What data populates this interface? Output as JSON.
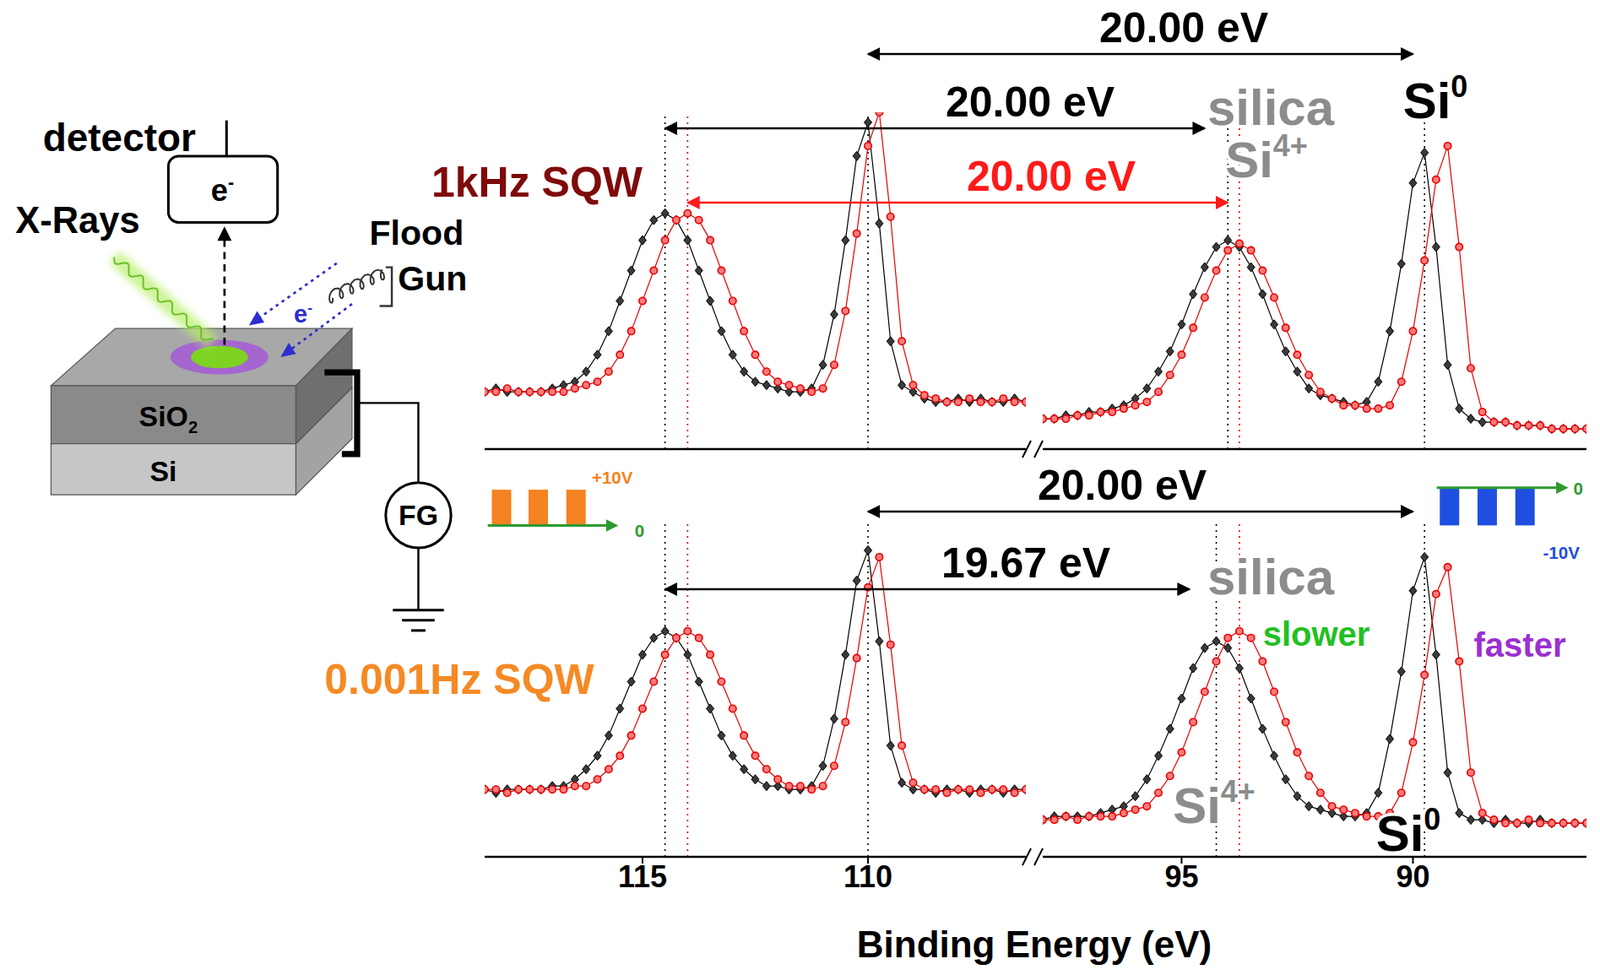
{
  "diagram": {
    "detector": "detector",
    "detector_signal": {
      "text": "e",
      "sup": "-"
    },
    "source": "X-Rays",
    "flood_gun": [
      "Flood",
      "Gun"
    ],
    "flood_electrons": {
      "text": "e",
      "sup": "-",
      "color": "#2d2dd0"
    },
    "layers": [
      {
        "text": "SiO",
        "sub": "2"
      },
      {
        "text": "Si"
      }
    ],
    "generator": "FG"
  },
  "chart_data": [
    {
      "type": "line",
      "title": "1kHz SQW",
      "color": "#7f0a0a",
      "ylim": [
        0,
        100
      ],
      "tick_labels": false,
      "grid": false,
      "segments": [
        {
          "xlim": [
            118.5,
            106.5
          ],
          "xticks": [
            115,
            110
          ],
          "x": [
            118.5,
            118.25,
            118,
            117.75,
            117.5,
            117.25,
            117,
            116.75,
            116.5,
            116.25,
            116,
            115.75,
            115.5,
            115.25,
            115,
            114.75,
            114.5,
            114.25,
            114,
            113.75,
            113.5,
            113.25,
            113,
            112.75,
            112.5,
            112.25,
            112,
            111.75,
            111.5,
            111.25,
            111,
            110.75,
            110.5,
            110.25,
            110,
            109.75,
            109.5,
            109.25,
            109,
            108.75,
            108.5,
            108.25,
            108,
            107.75,
            107.5,
            107.25,
            107,
            106.75,
            106.5
          ],
          "series": [
            {
              "color": "#000000",
              "marker": "diamond",
              "values": [
                17,
                18,
                17,
                17,
                17,
                17,
                18,
                19,
                20,
                23,
                28,
                35,
                44,
                53,
                62,
                68,
                70,
                68,
                62,
                53,
                44,
                35,
                28,
                23,
                20,
                19,
                18,
                17,
                17,
                18,
                25,
                40,
                62,
                87,
                97,
                67,
                32,
                19,
                17,
                15,
                14,
                14,
                15,
                14,
                15,
                14,
                14,
                15,
                14
              ]
            },
            {
              "color": "#e60000",
              "marker": "circle",
              "values": [
                17,
                17,
                18,
                17,
                17,
                17,
                17,
                17,
                18,
                19,
                20,
                23,
                28,
                35,
                44,
                53,
                62,
                68,
                70,
                68,
                62,
                53,
                44,
                35,
                28,
                23,
                20,
                19,
                18,
                17,
                18,
                25,
                41,
                64,
                90,
                100,
                69,
                32,
                19,
                16,
                15,
                14,
                14,
                15,
                14,
                14,
                15,
                14,
                14
              ]
            }
          ]
        },
        {
          "xlim": [
            98,
            86.25
          ],
          "xticks": [
            95,
            90
          ],
          "x": [
            98,
            97.75,
            97.5,
            97.25,
            97,
            96.75,
            96.5,
            96.25,
            96,
            95.75,
            95.5,
            95.25,
            95,
            94.75,
            94.5,
            94.25,
            94,
            93.75,
            93.5,
            93.25,
            93,
            92.75,
            92.5,
            92.25,
            92,
            91.75,
            91.5,
            91.25,
            91,
            90.75,
            90.5,
            90.25,
            90,
            89.75,
            89.5,
            89.25,
            89,
            88.75,
            88.5,
            88.25,
            88,
            87.75,
            87.5,
            87.25,
            87,
            86.75,
            86.5,
            86.25
          ],
          "series": [
            {
              "color": "#000000",
              "marker": "diamond",
              "values": [
                9,
                9,
                10,
                10,
                11,
                11,
                12,
                13,
                15,
                18,
                23,
                29,
                37,
                46,
                54,
                60,
                62,
                60,
                54,
                46,
                37,
                29,
                23,
                18,
                16,
                15,
                14,
                13,
                14,
                20,
                35,
                55,
                79,
                88,
                60,
                25,
                12,
                9,
                8,
                8,
                8,
                7,
                7,
                7,
                6,
                6,
                6,
                6
              ]
            },
            {
              "color": "#e60000",
              "marker": "circle",
              "values": [
                9,
                9,
                9,
                10,
                10,
                11,
                11,
                12,
                13,
                14,
                17,
                22,
                28,
                36,
                45,
                53,
                59,
                61,
                59,
                53,
                45,
                36,
                28,
                22,
                17,
                15,
                13,
                13,
                12,
                12,
                13,
                20,
                35,
                56,
                80,
                90,
                60,
                24,
                11,
                8,
                8,
                7,
                7,
                7,
                6,
                6,
                6,
                6
              ]
            }
          ]
        }
      ],
      "reference_lines": [
        {
          "x": 114.5,
          "color": "#000000"
        },
        {
          "x": 114.0,
          "color": "#e60000"
        },
        {
          "x": 110.0,
          "color": "#000000"
        },
        {
          "x": 94.0,
          "color": "#000000"
        },
        {
          "x": 93.75,
          "color": "#e60000"
        },
        {
          "x": 89.75,
          "color": "#000000"
        }
      ],
      "arrows": [
        {
          "text": "20.00 eV",
          "x1": 110.0,
          "x2": 90.0,
          "color": "#000000"
        },
        {
          "text": "20.00 eV",
          "x1": 114.5,
          "x2": 94.5,
          "color": "#000000"
        },
        {
          "text": "20.00 eV",
          "x1": 114.0,
          "x2": 94.0,
          "color": "#ff1a1a"
        }
      ],
      "labels": {
        "silica": {
          "text": "silica",
          "color": "#8c8c8c"
        },
        "oxide": {
          "text": "Si",
          "sup": "4+",
          "color": "#8c8c8c"
        },
        "substrate": {
          "text": "Si",
          "sup": "0",
          "color": "#000000"
        }
      }
    },
    {
      "type": "line",
      "title": "0.001Hz SQW",
      "color": "#f58a24",
      "xlabel": "Binding Energy (eV)",
      "ylim": [
        0,
        100
      ],
      "tick_labels": "x",
      "grid": false,
      "segments": [
        {
          "xlim": [
            118.5,
            106.5
          ],
          "xticks": [
            115,
            110
          ],
          "x": [
            118.5,
            118.25,
            118,
            117.75,
            117.5,
            117.25,
            117,
            116.75,
            116.5,
            116.25,
            116,
            115.75,
            115.5,
            115.25,
            115,
            114.75,
            114.5,
            114.25,
            114,
            113.75,
            113.5,
            113.25,
            113,
            112.75,
            112.5,
            112.25,
            112,
            111.75,
            111.5,
            111.25,
            111,
            110.75,
            110.5,
            110.25,
            110,
            109.75,
            109.5,
            109.25,
            109,
            108.75,
            108.5,
            108.25,
            108,
            107.75,
            107.5,
            107.25,
            107,
            106.75,
            106.5
          ],
          "series": [
            {
              "color": "#000000",
              "marker": "diamond",
              "values": [
                20,
                19,
                20,
                20,
                20,
                20,
                21,
                21,
                23,
                26,
                30,
                36,
                44,
                52,
                60,
                65,
                67,
                65,
                60,
                52,
                44,
                36,
                30,
                26,
                23,
                21,
                21,
                20,
                20,
                21,
                27,
                41,
                60,
                82,
                91,
                64,
                33,
                22,
                20,
                20,
                19,
                20,
                20,
                19,
                20,
                20,
                19,
                20,
                20
              ]
            },
            {
              "color": "#e60000",
              "marker": "circle",
              "values": [
                20,
                20,
                19,
                20,
                20,
                20,
                20,
                20,
                21,
                21,
                23,
                26,
                30,
                36,
                44,
                52,
                60,
                65,
                67,
                65,
                60,
                52,
                44,
                36,
                30,
                26,
                23,
                21,
                21,
                20,
                21,
                27,
                40,
                59,
                80,
                89,
                63,
                33,
                22,
                20,
                20,
                19,
                20,
                20,
                19,
                20,
                20,
                19,
                20
              ]
            }
          ]
        },
        {
          "xlim": [
            98,
            86.25
          ],
          "xticks": [
            95,
            90
          ],
          "x": [
            98,
            97.75,
            97.5,
            97.25,
            97,
            96.75,
            96.5,
            96.25,
            96,
            95.75,
            95.5,
            95.25,
            95,
            94.75,
            94.5,
            94.25,
            94,
            93.75,
            93.5,
            93.25,
            93,
            92.75,
            92.5,
            92.25,
            92,
            91.75,
            91.5,
            91.25,
            91,
            90.75,
            90.5,
            90.25,
            90,
            89.75,
            89.5,
            89.25,
            89,
            88.75,
            88.5,
            88.25,
            88,
            87.75,
            87.5,
            87.25,
            87,
            86.75,
            86.5,
            86.25
          ],
          "series": [
            {
              "color": "#000000",
              "marker": "diamond",
              "values": [
                11,
                12,
                12,
                12,
                12,
                13,
                14,
                15,
                18,
                23,
                30,
                38,
                47,
                56,
                62,
                64,
                62,
                56,
                47,
                38,
                30,
                23,
                18,
                15,
                14,
                13,
                12,
                12,
                13,
                19,
                35,
                55,
                79,
                89,
                60,
                25,
                13,
                11,
                11,
                10,
                11,
                10,
                10,
                11,
                10,
                10,
                10,
                10
              ]
            },
            {
              "color": "#e60000",
              "marker": "circle",
              "values": [
                11,
                11,
                12,
                11,
                12,
                12,
                12,
                13,
                14,
                15,
                19,
                24,
                31,
                40,
                49,
                58,
                65,
                67,
                65,
                58,
                49,
                40,
                31,
                24,
                19,
                15,
                14,
                13,
                12,
                12,
                13,
                19,
                34,
                54,
                78,
                86,
                58,
                25,
                13,
                11,
                10,
                10,
                11,
                10,
                10,
                10,
                10,
                10
              ]
            }
          ]
        }
      ],
      "reference_lines": [
        {
          "x": 114.5,
          "color": "#000000"
        },
        {
          "x": 114.0,
          "color": "#e60000"
        },
        {
          "x": 110.0,
          "color": "#000000"
        },
        {
          "x": 94.25,
          "color": "#000000"
        },
        {
          "x": 93.75,
          "color": "#e60000"
        },
        {
          "x": 89.75,
          "color": "#000000"
        }
      ],
      "arrows": [
        {
          "text": "20.00 eV",
          "x1": 110.0,
          "x2": 90.0,
          "color": "#000000"
        },
        {
          "text": "19.67 eV",
          "x1": 114.5,
          "x2": 94.83,
          "color": "#000000"
        }
      ],
      "labels": {
        "silica": {
          "text": "silica",
          "color": "#8c8c8c"
        },
        "oxide": {
          "text": "Si",
          "sup": "4+",
          "color": "#8c8c8c"
        },
        "substrate": {
          "text": "Si",
          "sup": "0",
          "color": "#000000"
        },
        "slower": {
          "text": "slower",
          "color": "#22c022"
        },
        "faster": {
          "text": "faster",
          "color": "#9b30d0"
        }
      },
      "waveforms": [
        {
          "labels": [
            "+10V",
            "0"
          ],
          "colors": [
            "#f58220",
            "#2e9a2e"
          ]
        },
        {
          "labels": [
            "0",
            "-10V"
          ],
          "colors": [
            "#2e9a2e",
            "#1f4fe0"
          ]
        }
      ]
    }
  ]
}
